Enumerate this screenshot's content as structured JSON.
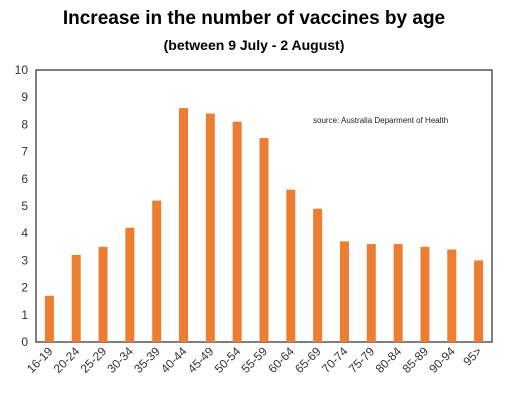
{
  "chart_data": {
    "type": "bar",
    "title": "Increase in the number of vaccines by age",
    "subtitle": "(between 9 July - 2 August)",
    "annotation": "source:  Australia Deparment of Health",
    "categories": [
      "16-19",
      "20-24",
      "25-29",
      "30-34",
      "35-39",
      "40-44",
      "45-49",
      "50-54",
      "55-59",
      "60-64",
      "65-69",
      "70-74",
      "75-79",
      "80-84",
      "85-89",
      "90-94",
      "95>"
    ],
    "values": [
      1.7,
      3.2,
      3.5,
      4.2,
      5.2,
      8.6,
      8.4,
      8.1,
      7.5,
      5.6,
      4.9,
      3.7,
      3.6,
      3.6,
      3.5,
      3.4,
      3.0
    ],
    "yticks": [
      0,
      1,
      2,
      3,
      4,
      5,
      6,
      7,
      8,
      9,
      10
    ],
    "ylim": [
      0,
      10
    ],
    "xlabel": "",
    "ylabel": "",
    "grid": false,
    "bar_color": "#ED7D31"
  }
}
